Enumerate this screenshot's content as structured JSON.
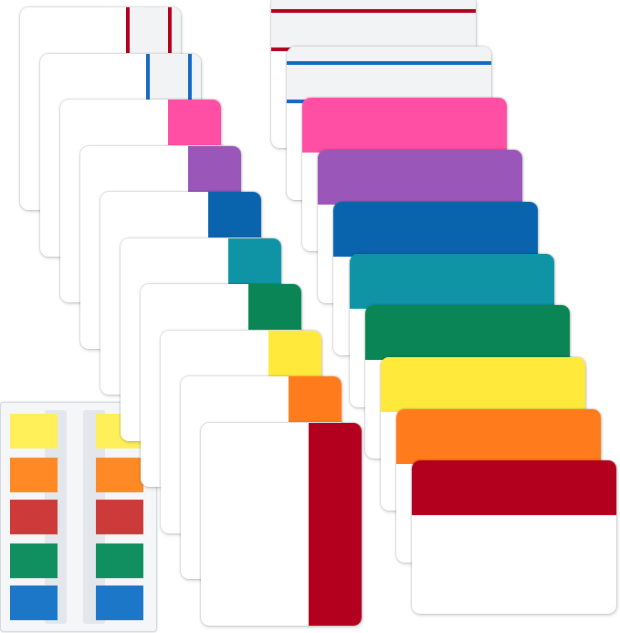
{
  "tab_colors": {
    "red": "#b3001e",
    "blue_line": "#1469c4",
    "pink": "#ff4fa5",
    "purple": "#9b56b9",
    "blue": "#0a63ad",
    "teal": "#0f94a6",
    "green": "#0a8556",
    "yellow": "#ffe93b",
    "orange": "#ff7b1c"
  },
  "vertical_tabs": [
    "lines-red",
    "lines-blue",
    "pink",
    "purple",
    "blue",
    "teal",
    "green",
    "yellow",
    "orange",
    "red"
  ],
  "horizontal_tabs": [
    "lines-red",
    "lines-blue",
    "pink",
    "purple",
    "blue",
    "teal",
    "green",
    "yellow",
    "orange",
    "red"
  ],
  "flag_sheet": {
    "columns": 2,
    "rows": [
      "#fff05a",
      "#ff8a25",
      "#cc3a3a",
      "#109060",
      "#1d77c9"
    ]
  }
}
